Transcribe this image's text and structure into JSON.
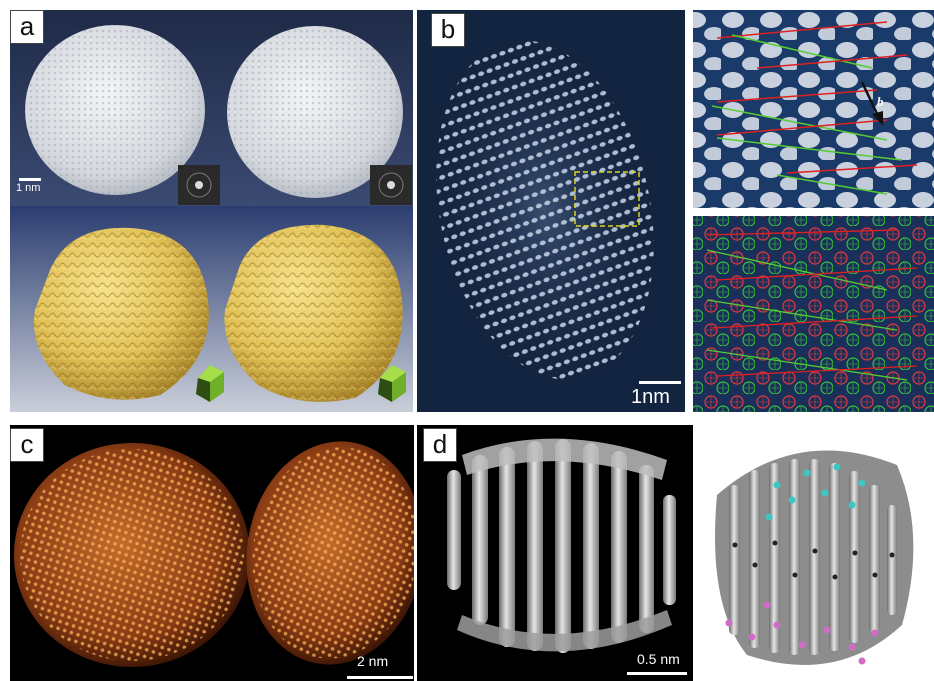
{
  "figure": {
    "panels": [
      {
        "id": "a",
        "label": "a",
        "scale_label": "1 nm"
      },
      {
        "id": "b",
        "label": "b",
        "scale_label": "1nm",
        "arrow_label": "b"
      },
      {
        "id": "c",
        "label": "c",
        "scale_label": "2 nm"
      },
      {
        "id": "d",
        "label": "d",
        "scale_label": "0.5 nm"
      }
    ]
  }
}
